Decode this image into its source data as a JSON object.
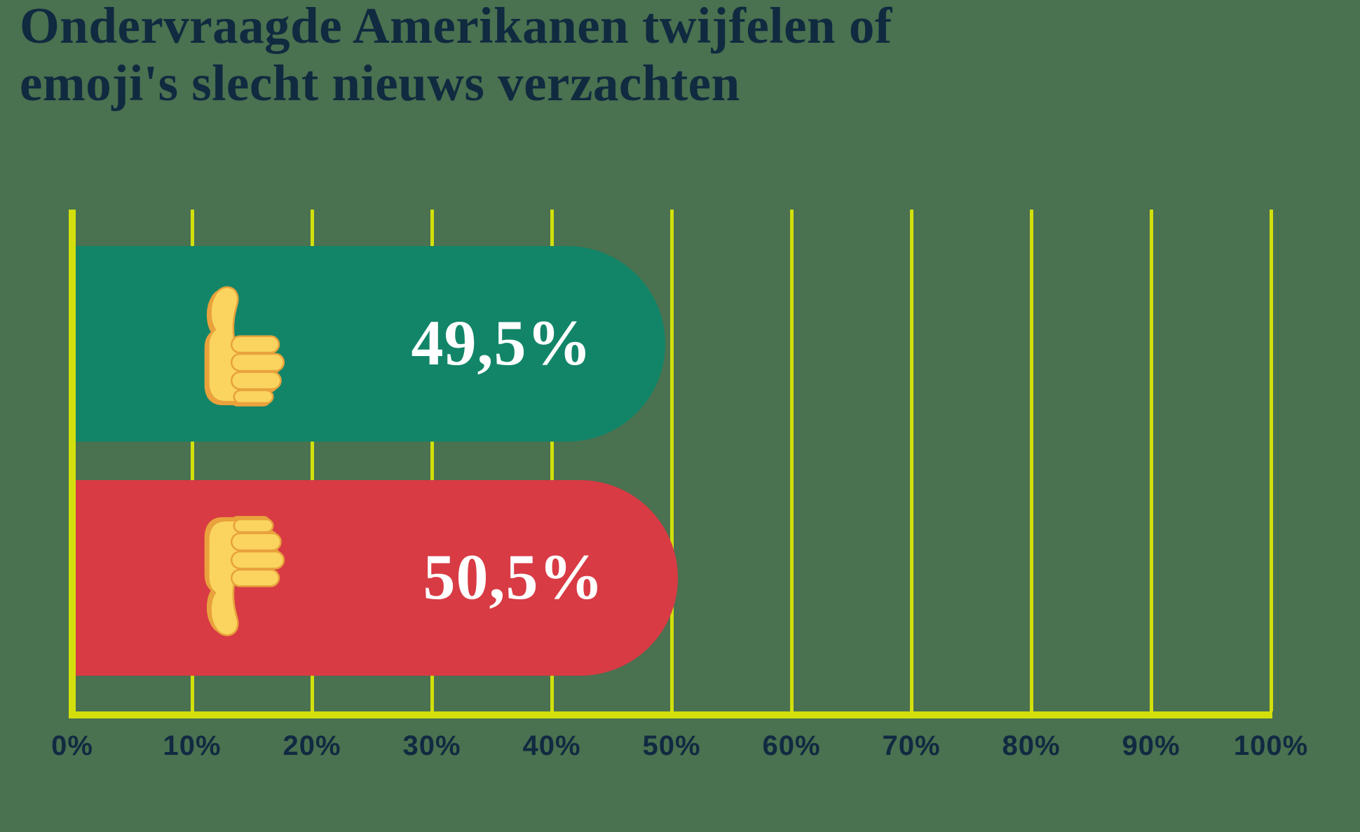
{
  "title": "Ondervraagde Amerikanen twijfelen of\nemoji's slecht nieuws verzachten",
  "colors": {
    "background": "#4A7150",
    "grid": "#D3DF0C",
    "bar_positive": "#128568",
    "bar_negative": "#D83B44",
    "heading_text": "#102A40",
    "tick_text": "#112A41",
    "value_text": "#FFFFFF",
    "emoji_fill": "#FAD45F",
    "emoji_shade": "#E9A23C"
  },
  "chart_data": {
    "type": "bar",
    "orientation": "horizontal",
    "title": "Ondervraagde Amerikanen twijfelen of emoji's slecht nieuws verzachten",
    "xlim": [
      0,
      100
    ],
    "x_ticks": [
      "0%",
      "10%",
      "20%",
      "30%",
      "40%",
      "50%",
      "60%",
      "70%",
      "80%",
      "90%",
      "100%"
    ],
    "grid": "vertical",
    "legend": "none",
    "bars": [
      {
        "category": "thumbs-up",
        "value": 49.5,
        "label": "49,5%"
      },
      {
        "category": "thumbs-down",
        "value": 50.5,
        "label": "50,5%"
      }
    ]
  }
}
